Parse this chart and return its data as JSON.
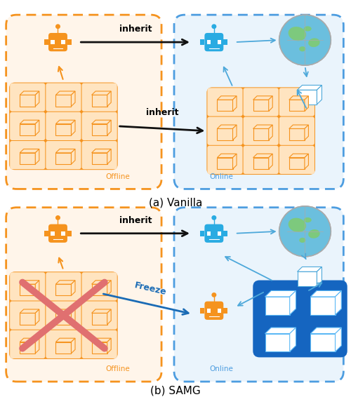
{
  "fig_width": 5.0,
  "fig_height": 5.66,
  "dpi": 100,
  "bg_color": "#ffffff",
  "orange_dash": "#F5931E",
  "orange_fill": "#FFF5EA",
  "orange_grid_fill": "#F5931E",
  "orange_grid_inner": "#FFE4C0",
  "blue_dash": "#4D9DE0",
  "blue_fill": "#EAF4FC",
  "robot_orange": "#F5931E",
  "robot_blue": "#29ABE2",
  "robot_blue_dark": "#1E7FC2",
  "arrow_black": "#111111",
  "arrow_blue": "#4DA8DA",
  "freeze_blue": "#1A6BB5",
  "text_orange": "#F5931E",
  "text_blue": "#4D9DE0",
  "grid_blue_bg": "#1565C0",
  "grid_blue_border": "#1565C0",
  "cube_blue_front": "#ffffff",
  "cube_blue_edge": "#5BB8F5",
  "label_a": "(a) Vanilla",
  "label_b": "(b) SAMG",
  "offline_label": "Offline",
  "online_label": "Online",
  "inherit_text": "inherit",
  "freeze_text": "Freeze"
}
